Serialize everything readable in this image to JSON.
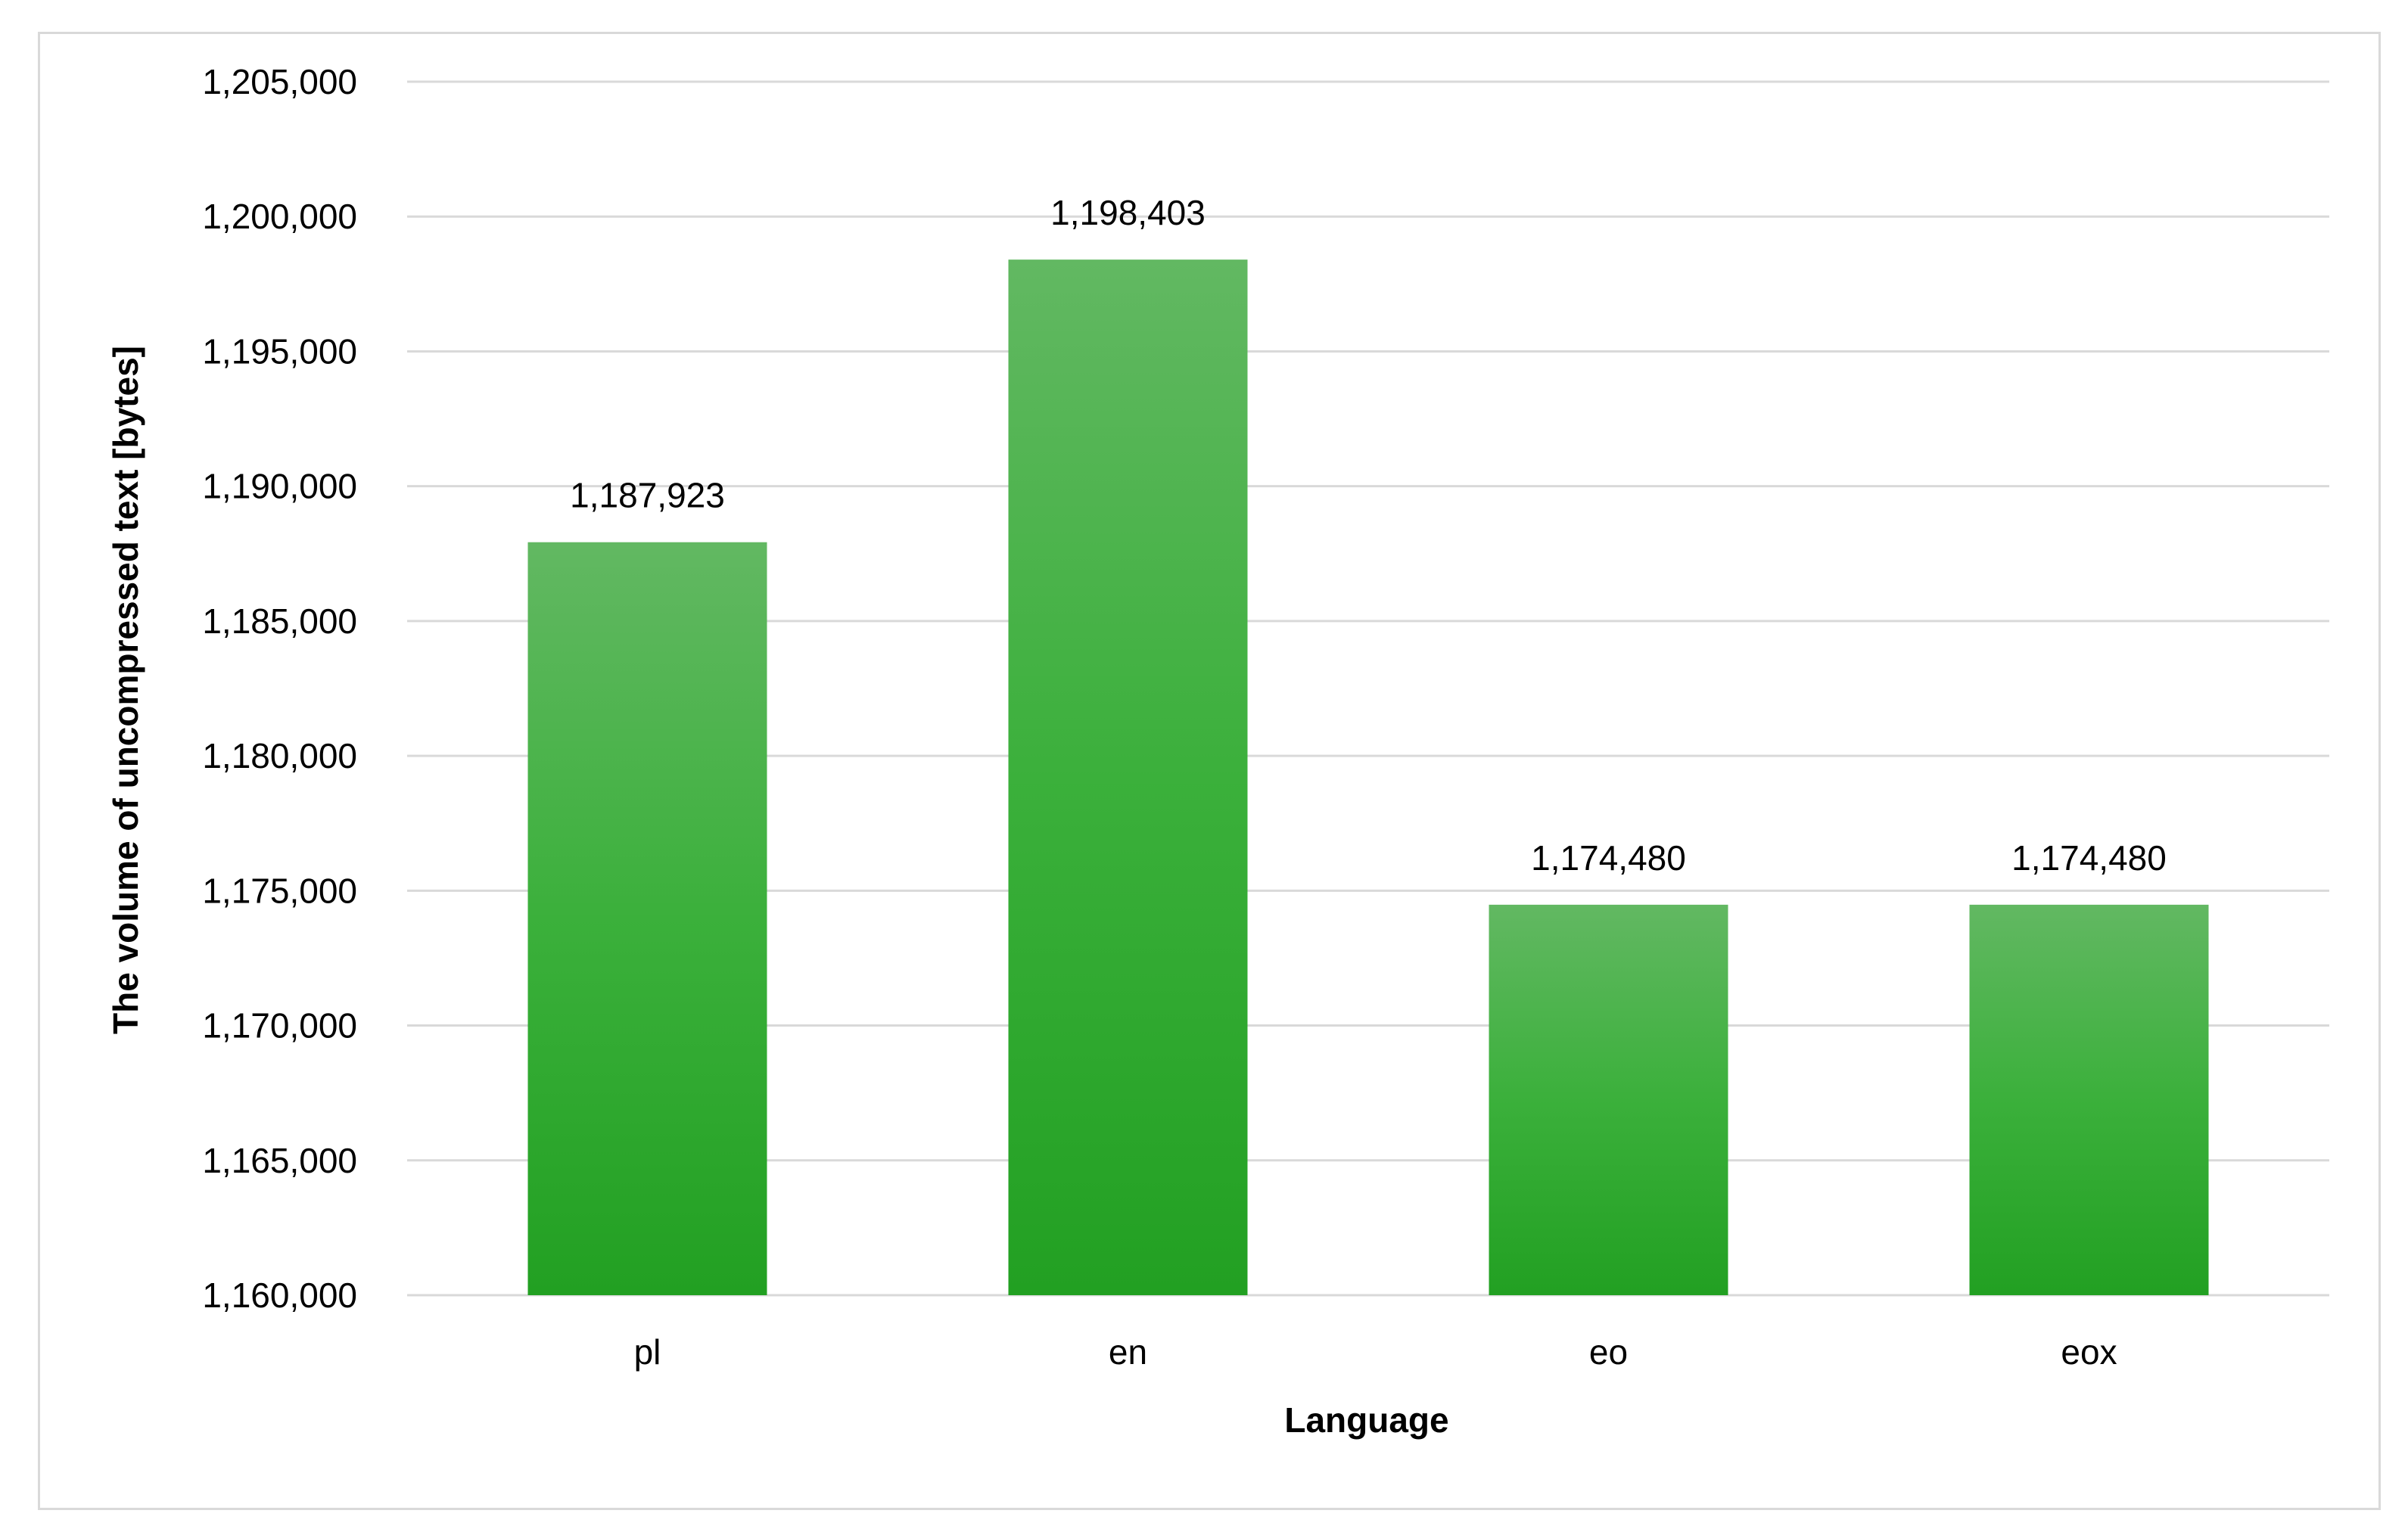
{
  "chart_data": {
    "type": "bar",
    "title": "",
    "xlabel": "Language",
    "ylabel": "The volume of uncompressed text [bytes]",
    "categories": [
      "pl",
      "en",
      "eo",
      "eox"
    ],
    "values": [
      1187923,
      1198403,
      1174480,
      1174480
    ],
    "data_labels": [
      "1,187,923",
      "1,198,403",
      "1,174,480",
      "1,174,480"
    ],
    "ylim": [
      1160000,
      1205000
    ],
    "y_ticks": [
      1160000,
      1165000,
      1170000,
      1175000,
      1180000,
      1185000,
      1190000,
      1195000,
      1200000,
      1205000
    ],
    "y_tick_labels": [
      "1,160,000",
      "1,165,000",
      "1,170,000",
      "1,175,000",
      "1,180,000",
      "1,185,000",
      "1,190,000",
      "1,195,000",
      "1,200,000",
      "1,205,000"
    ],
    "grid": true,
    "legend": "none",
    "colors": {
      "bar_top": "#62b862",
      "bar_bottom": "#22a022",
      "gridline": "#d9d9d9",
      "border": "#d9d9d9"
    }
  }
}
